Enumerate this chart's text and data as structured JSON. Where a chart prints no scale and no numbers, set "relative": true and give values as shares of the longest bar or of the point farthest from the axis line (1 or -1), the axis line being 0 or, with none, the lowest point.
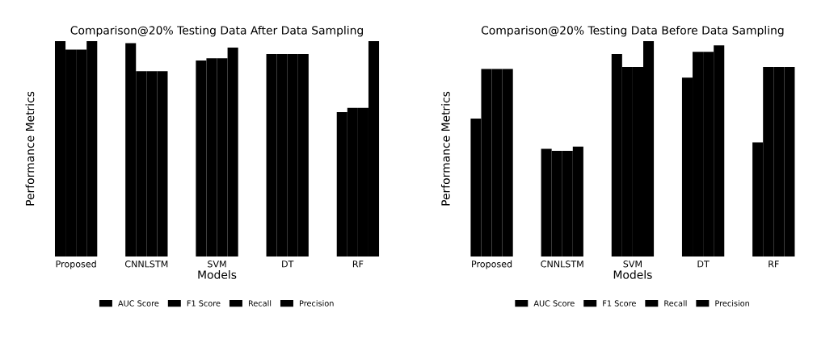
{
  "chart_data": [
    {
      "type": "bar",
      "title": "Comparison@20% Testing Data After Data Sampling",
      "xlabel": "Models",
      "ylabel": "Performance Metrics",
      "relative": true,
      "legend": "bottom",
      "tick_labels": "x",
      "categories": [
        "Proposed",
        "CNNLSTM",
        "SVM",
        "DT",
        "RF"
      ],
      "series": [
        {
          "name": "AUC Score",
          "color": "#000000",
          "values": [
            1.0,
            0.99,
            0.91,
            0.94,
            0.67
          ]
        },
        {
          "name": "F1 Score",
          "color": "#000000",
          "values": [
            0.96,
            0.86,
            0.92,
            0.94,
            0.69
          ]
        },
        {
          "name": "Recall",
          "color": "#000000",
          "values": [
            0.96,
            0.86,
            0.92,
            0.94,
            0.69
          ]
        },
        {
          "name": "Precision",
          "color": "#000000",
          "values": [
            1.0,
            0.86,
            0.97,
            0.94,
            1.0
          ]
        }
      ]
    },
    {
      "type": "bar",
      "title": "Comparison@20% Testing Data Before Data Sampling",
      "xlabel": "Models",
      "ylabel": "Performance Metrics",
      "relative": true,
      "legend": "bottom",
      "tick_labels": "x",
      "categories": [
        "Proposed",
        "CNNLSTM",
        "SVM",
        "DT",
        "RF"
      ],
      "series": [
        {
          "name": "AUC Score",
          "color": "#000000",
          "values": [
            0.64,
            0.5,
            0.94,
            0.83,
            0.53
          ]
        },
        {
          "name": "F1 Score",
          "color": "#000000",
          "values": [
            0.87,
            0.49,
            0.88,
            0.95,
            0.88
          ]
        },
        {
          "name": "Recall",
          "color": "#000000",
          "values": [
            0.87,
            0.49,
            0.88,
            0.95,
            0.88
          ]
        },
        {
          "name": "Precision",
          "color": "#000000",
          "values": [
            0.87,
            0.51,
            1.0,
            0.98,
            0.88
          ]
        }
      ]
    }
  ]
}
